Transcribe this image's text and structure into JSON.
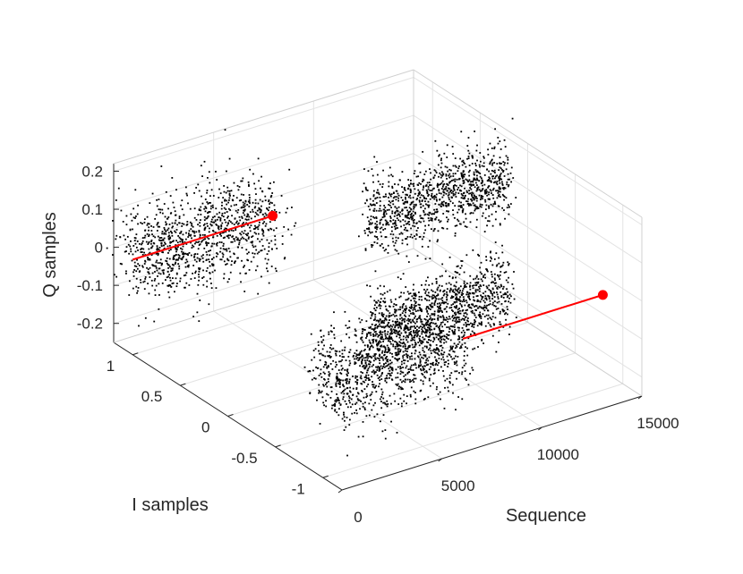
{
  "chart_data": {
    "type": "scatter",
    "title": "",
    "view": "3d",
    "grid": true,
    "axes": {
      "x": {
        "label": "Sequence",
        "range": [
          0,
          15000
        ],
        "ticks": [
          0,
          5000,
          10000,
          15000
        ],
        "tick_labels": [
          "0",
          "5000",
          "10000",
          "15000"
        ]
      },
      "y": {
        "label": "I samples",
        "range": [
          -1.2,
          1.2
        ],
        "ticks": [
          1,
          0.5,
          0,
          -0.5,
          -1
        ],
        "tick_labels": [
          "1",
          "0.5",
          "0",
          "-0.5",
          "-1"
        ]
      },
      "z": {
        "label": "Q samples",
        "range": [
          -0.25,
          0.22
        ],
        "ticks": [
          0.2,
          0.1,
          0,
          -0.1,
          -0.2
        ],
        "tick_labels": [
          "0.2",
          "0.1",
          "0",
          "-0.1",
          "-0.2"
        ]
      }
    },
    "series": [
      {
        "kind": "scatter",
        "color": "#000000",
        "clusters": [
          {
            "seq_range": [
              0,
              7000
            ],
            "i_center": 1.0,
            "i_spread": 0.12,
            "q_center": 0.0,
            "q_spread": 0.06
          },
          {
            "seq_range": [
              0,
              7000
            ],
            "i_center": -1.0,
            "i_spread": 0.12,
            "q_center": 0.0,
            "q_spread": 0.06
          },
          {
            "seq_range": [
              7000,
              14000
            ],
            "i_center": 0.0,
            "i_spread": 0.05,
            "q_center": 0.15,
            "q_spread": 0.05
          },
          {
            "seq_range": [
              7000,
              14000
            ],
            "i_center": 0.0,
            "i_spread": 0.05,
            "q_center": -0.15,
            "q_spread": 0.05
          }
        ]
      },
      {
        "kind": "line",
        "color": "#ff0000",
        "segments": [
          {
            "from": {
              "seq": 0,
              "i": 1.0,
              "q": 0.0
            },
            "to": {
              "seq": 7000,
              "i": 1.0,
              "q": 0.0
            },
            "end_marker": true
          },
          {
            "from": {
              "seq": 7000,
              "i": -1.0,
              "q": 0.0
            },
            "to": {
              "seq": 14000,
              "i": -1.0,
              "q": 0.0
            },
            "end_marker": true
          }
        ]
      }
    ]
  }
}
